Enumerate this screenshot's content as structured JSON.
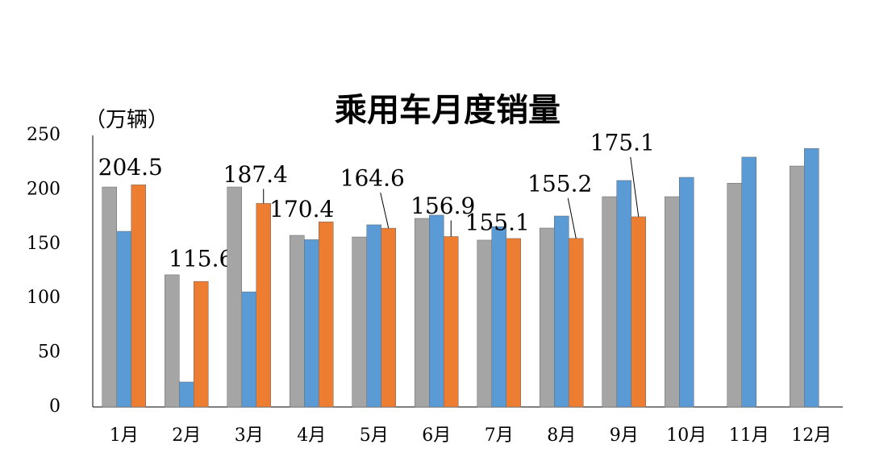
{
  "chart_data": {
    "type": "bar",
    "title": "乘用车月度销量",
    "y_label": "（万辆）",
    "categories": [
      "1月",
      "2月",
      "3月",
      "4月",
      "5月",
      "6月",
      "7月",
      "8月",
      "9月",
      "10月",
      "11月",
      "12月"
    ],
    "series": [
      {
        "color": "#a5a5a5",
        "values": [
          202.5,
          121.7,
          202.5,
          158,
          156.5,
          173.6,
          153.6,
          164.7,
          193.6,
          193.6,
          206,
          221.8
        ]
      },
      {
        "color": "#5b9bd5",
        "values": [
          161.7,
          23,
          106,
          154,
          167.7,
          176.6,
          166,
          175.8,
          208.5,
          211.4,
          230,
          238
        ]
      },
      {
        "color": "#ed7d31",
        "values": [
          204.5,
          115.6,
          187.4,
          170.4,
          164.6,
          156.9,
          155.1,
          155.2,
          175.1,
          null,
          null,
          null
        ],
        "data_labels": true
      }
    ],
    "ylim": [
      0,
      250
    ],
    "yticks": [
      0,
      50,
      100,
      150,
      200,
      250
    ],
    "grid": false
  }
}
